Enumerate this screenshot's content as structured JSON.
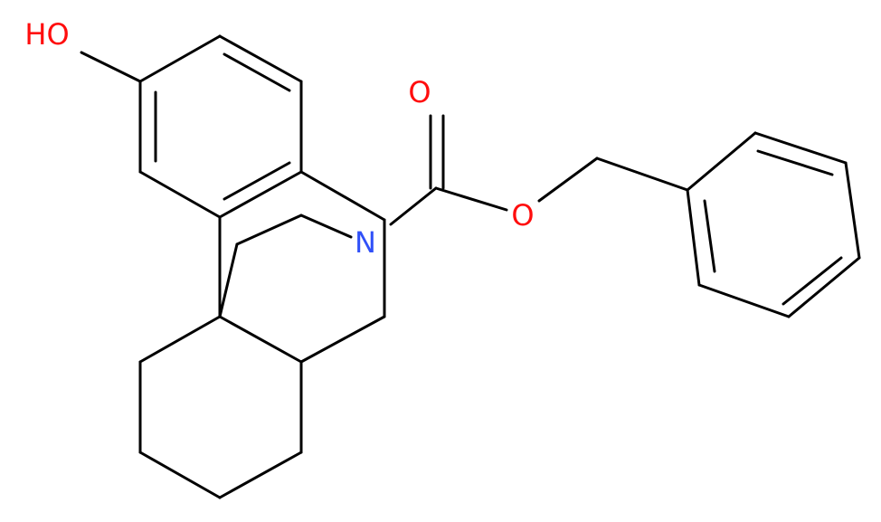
{
  "atoms": {
    "hydroxyl": "HO",
    "carbonyl_oxygen": "O",
    "ester_oxygen": "O",
    "nitrogen": "N"
  }
}
